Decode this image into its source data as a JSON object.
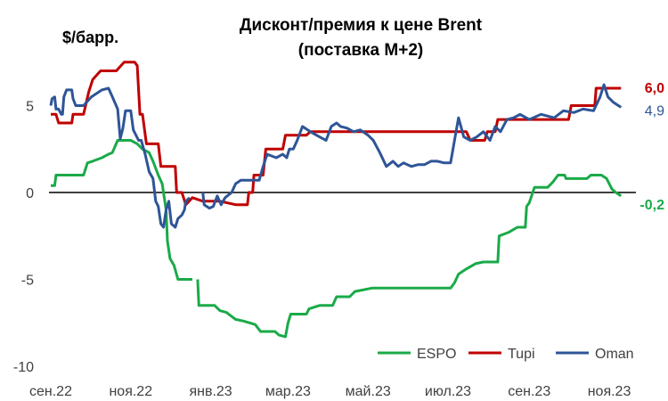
{
  "chart_data": {
    "type": "line",
    "title_line1": "Дисконт/премия к цене Brent",
    "title_line2": "(поставка М+2)",
    "ylabel": "$/барр.",
    "ylim": [
      -10,
      7.5
    ],
    "y_ticks": [
      "5",
      "0",
      "-5",
      "-10"
    ],
    "y_tick_values": [
      5,
      0,
      -5,
      -10
    ],
    "x_ticks": [
      "сен.22",
      "ноя.22",
      "янв.23",
      "мар.23",
      "май.23",
      "июл.23",
      "сен.23",
      "ноя.23"
    ],
    "x_tick_dates": [
      "2022-09-01",
      "2022-11-01",
      "2023-01-01",
      "2023-03-01",
      "2023-05-01",
      "2023-07-01",
      "2023-09-01",
      "2023-11-01"
    ],
    "xlim": [
      "2022-09-01",
      "2023-11-20"
    ],
    "legend_position": "bottom-right",
    "series": [
      {
        "name": "ESPO",
        "color": "#1aaa48",
        "end_label": "-0,2",
        "points": [
          [
            "2022-09-01",
            0.4
          ],
          [
            "2022-09-04",
            0.4
          ],
          [
            "2022-09-05",
            1.0
          ],
          [
            "2022-09-15",
            1.0
          ],
          [
            "2022-09-26",
            1.0
          ],
          [
            "2022-09-29",
            1.7
          ],
          [
            "2022-10-03",
            1.8
          ],
          [
            "2022-10-10",
            2.0
          ],
          [
            "2022-10-15",
            2.2
          ],
          [
            "2022-10-18",
            2.3
          ],
          [
            "2022-10-22",
            3.0
          ],
          [
            "2022-11-01",
            3.0
          ],
          [
            "2022-11-06",
            2.8
          ],
          [
            "2022-11-10",
            2.5
          ],
          [
            "2022-11-15",
            2.3
          ],
          [
            "2022-11-18",
            1.8
          ],
          [
            "2022-11-22",
            1.0
          ],
          [
            "2022-11-25",
            0.5
          ],
          [
            "2022-11-28",
            -1.0
          ],
          [
            "2022-11-29",
            -2.8
          ],
          [
            "2022-12-01",
            -3.8
          ],
          [
            "2022-12-04",
            -4.2
          ],
          [
            "2022-12-07",
            -5.0
          ],
          [
            "2022-12-18",
            -5.0
          ],
          [
            "2022-12-18",
            null
          ],
          [
            "2022-12-22",
            -5.0
          ],
          [
            "2022-12-23",
            -6.5
          ],
          [
            "2023-01-04",
            -6.5
          ],
          [
            "2023-01-08",
            -6.8
          ],
          [
            "2023-01-13",
            -6.9
          ],
          [
            "2023-01-20",
            -7.3
          ],
          [
            "2023-01-26",
            -7.4
          ],
          [
            "2023-02-04",
            -7.6
          ],
          [
            "2023-02-08",
            -8.0
          ],
          [
            "2023-02-19",
            -8.0
          ],
          [
            "2023-02-22",
            -8.2
          ],
          [
            "2023-02-27",
            -8.3
          ],
          [
            "2023-03-01",
            -7.5
          ],
          [
            "2023-03-03",
            -7.0
          ],
          [
            "2023-03-15",
            -7.0
          ],
          [
            "2023-03-17",
            -6.7
          ],
          [
            "2023-03-25",
            -6.5
          ],
          [
            "2023-04-04",
            -6.5
          ],
          [
            "2023-04-07",
            -6.0
          ],
          [
            "2023-04-17",
            -6.0
          ],
          [
            "2023-04-21",
            -5.7
          ],
          [
            "2023-05-04",
            -5.5
          ],
          [
            "2023-05-18",
            -5.5
          ],
          [
            "2023-06-15",
            -5.5
          ],
          [
            "2023-07-03",
            -5.5
          ],
          [
            "2023-07-06",
            -5.2
          ],
          [
            "2023-07-09",
            -4.7
          ],
          [
            "2023-07-15",
            -4.4
          ],
          [
            "2023-07-22",
            -4.1
          ],
          [
            "2023-07-28",
            -4.0
          ],
          [
            "2023-08-08",
            -4.0
          ],
          [
            "2023-08-09",
            -2.5
          ],
          [
            "2023-08-16",
            -2.3
          ],
          [
            "2023-08-23",
            -2.0
          ],
          [
            "2023-08-29",
            -2.0
          ],
          [
            "2023-08-30",
            -0.8
          ],
          [
            "2023-09-01",
            -0.6
          ],
          [
            "2023-09-05",
            0.3
          ],
          [
            "2023-09-15",
            0.3
          ],
          [
            "2023-09-19",
            0.6
          ],
          [
            "2023-09-23",
            1.0
          ],
          [
            "2023-09-28",
            1.0
          ],
          [
            "2023-09-29",
            0.8
          ],
          [
            "2023-10-15",
            0.8
          ],
          [
            "2023-10-18",
            1.0
          ],
          [
            "2023-10-26",
            1.0
          ],
          [
            "2023-10-30",
            0.8
          ],
          [
            "2023-11-03",
            0.2
          ],
          [
            "2023-11-06",
            0.0
          ],
          [
            "2023-11-10",
            -0.2
          ]
        ]
      },
      {
        "name": "Tupi",
        "color": "#c00000",
        "end_label": "6,0",
        "points": [
          [
            "2022-09-01",
            4.5
          ],
          [
            "2022-09-05",
            4.5
          ],
          [
            "2022-09-07",
            4.0
          ],
          [
            "2022-09-17",
            4.0
          ],
          [
            "2022-09-18",
            4.5
          ],
          [
            "2022-09-26",
            4.5
          ],
          [
            "2022-09-30",
            5.8
          ],
          [
            "2022-10-03",
            6.5
          ],
          [
            "2022-10-09",
            7.0
          ],
          [
            "2022-10-21",
            7.0
          ],
          [
            "2022-10-27",
            7.5
          ],
          [
            "2022-11-04",
            7.5
          ],
          [
            "2022-11-06",
            7.3
          ],
          [
            "2022-11-08",
            4.5
          ],
          [
            "2022-11-10",
            4.5
          ],
          [
            "2022-11-13",
            2.8
          ],
          [
            "2022-11-22",
            2.8
          ],
          [
            "2022-11-24",
            1.5
          ],
          [
            "2022-12-05",
            1.5
          ],
          [
            "2022-12-06",
            0.0
          ],
          [
            "2022-12-10",
            0.0
          ],
          [
            "2022-12-13",
            -0.7
          ],
          [
            "2022-12-18",
            -0.3
          ],
          [
            "2022-12-26",
            -0.5
          ],
          [
            "2023-01-08",
            -0.5
          ],
          [
            "2023-01-20",
            -0.7
          ],
          [
            "2023-01-29",
            -0.7
          ],
          [
            "2023-01-30",
            0.0
          ],
          [
            "2023-02-02",
            0.0
          ],
          [
            "2023-02-03",
            1.0
          ],
          [
            "2023-02-10",
            1.0
          ],
          [
            "2023-02-12",
            2.5
          ],
          [
            "2023-02-25",
            2.5
          ],
          [
            "2023-02-27",
            3.3
          ],
          [
            "2023-03-15",
            3.3
          ],
          [
            "2023-03-18",
            3.5
          ],
          [
            "2023-07-15",
            3.5
          ],
          [
            "2023-07-18",
            3.0
          ],
          [
            "2023-07-29",
            3.0
          ],
          [
            "2023-07-31",
            3.5
          ],
          [
            "2023-08-06",
            3.5
          ],
          [
            "2023-08-08",
            4.2
          ],
          [
            "2023-10-01",
            4.2
          ],
          [
            "2023-10-03",
            5.0
          ],
          [
            "2023-10-21",
            5.0
          ],
          [
            "2023-10-22",
            6.0
          ],
          [
            "2023-11-10",
            6.0
          ]
        ]
      },
      {
        "name": "Oman",
        "color": "#2e5597",
        "end_label": "4,9",
        "points": [
          [
            "2022-09-01",
            5.0
          ],
          [
            "2022-09-02",
            5.4
          ],
          [
            "2022-09-04",
            5.5
          ],
          [
            "2022-09-05",
            4.8
          ],
          [
            "2022-09-07",
            4.8
          ],
          [
            "2022-09-09",
            4.5
          ],
          [
            "2022-09-10",
            4.5
          ],
          [
            "2022-09-11",
            5.5
          ],
          [
            "2022-09-13",
            5.9
          ],
          [
            "2022-09-17",
            5.9
          ],
          [
            "2022-09-18",
            5.4
          ],
          [
            "2022-09-20",
            5.0
          ],
          [
            "2022-09-26",
            5.0
          ],
          [
            "2022-10-02",
            5.5
          ],
          [
            "2022-10-10",
            5.9
          ],
          [
            "2022-10-15",
            6.0
          ],
          [
            "2022-10-18",
            5.5
          ],
          [
            "2022-10-22",
            4.8
          ],
          [
            "2022-10-24",
            3.1
          ],
          [
            "2022-10-26",
            3.7
          ],
          [
            "2022-10-28",
            4.7
          ],
          [
            "2022-11-01",
            4.7
          ],
          [
            "2022-11-03",
            3.6
          ],
          [
            "2022-11-07",
            3.0
          ],
          [
            "2022-11-09",
            3.0
          ],
          [
            "2022-11-12",
            2.2
          ],
          [
            "2022-11-15",
            1.2
          ],
          [
            "2022-11-18",
            0.8
          ],
          [
            "2022-11-20",
            -0.5
          ],
          [
            "2022-11-22",
            -0.8
          ],
          [
            "2022-11-24",
            -1.8
          ],
          [
            "2022-11-26",
            -2.0
          ],
          [
            "2022-11-28",
            -1.0
          ],
          [
            "2022-11-30",
            -0.5
          ],
          [
            "2022-12-02",
            -1.8
          ],
          [
            "2022-12-05",
            -2.0
          ],
          [
            "2022-12-07",
            -1.5
          ],
          [
            "2022-12-10",
            -1.3
          ],
          [
            "2022-12-12",
            -1.0
          ],
          [
            "2022-12-13",
            -0.5
          ],
          [
            "2022-12-16",
            -0.3
          ],
          [
            "2022-12-18",
            null
          ],
          [
            "2022-12-26",
            0.0
          ],
          [
            "2022-12-27",
            -0.7
          ],
          [
            "2022-12-31",
            -0.9
          ],
          [
            "2023-01-03",
            -0.8
          ],
          [
            "2023-01-06",
            -0.2
          ],
          [
            "2023-01-09",
            -0.7
          ],
          [
            "2023-01-12",
            -0.3
          ],
          [
            "2023-01-17",
            0.0
          ],
          [
            "2023-01-20",
            0.5
          ],
          [
            "2023-01-24",
            0.7
          ],
          [
            "2023-02-07",
            0.7
          ],
          [
            "2023-02-10",
            1.5
          ],
          [
            "2023-02-13",
            2.2
          ],
          [
            "2023-02-20",
            2.0
          ],
          [
            "2023-02-25",
            2.2
          ],
          [
            "2023-02-28",
            2.0
          ],
          [
            "2023-03-02",
            2.5
          ],
          [
            "2023-03-05",
            2.5
          ],
          [
            "2023-03-08",
            3.0
          ],
          [
            "2023-03-12",
            3.8
          ],
          [
            "2023-03-18",
            3.5
          ],
          [
            "2023-03-25",
            3.2
          ],
          [
            "2023-03-30",
            3.0
          ],
          [
            "2023-04-03",
            3.8
          ],
          [
            "2023-04-07",
            4.0
          ],
          [
            "2023-04-10",
            3.8
          ],
          [
            "2023-04-15",
            3.7
          ],
          [
            "2023-04-20",
            3.5
          ],
          [
            "2023-04-25",
            3.6
          ],
          [
            "2023-05-01",
            3.3
          ],
          [
            "2023-05-05",
            3.0
          ],
          [
            "2023-05-10",
            2.3
          ],
          [
            "2023-05-15",
            1.5
          ],
          [
            "2023-05-20",
            1.8
          ],
          [
            "2023-05-24",
            1.5
          ],
          [
            "2023-05-28",
            1.7
          ],
          [
            "2023-06-03",
            1.5
          ],
          [
            "2023-06-08",
            1.6
          ],
          [
            "2023-06-13",
            1.6
          ],
          [
            "2023-06-18",
            1.8
          ],
          [
            "2023-06-23",
            1.8
          ],
          [
            "2023-06-28",
            1.7
          ],
          [
            "2023-07-03",
            1.7
          ],
          [
            "2023-07-06",
            3.0
          ],
          [
            "2023-07-09",
            4.3
          ],
          [
            "2023-07-13",
            3.2
          ],
          [
            "2023-07-18",
            3.0
          ],
          [
            "2023-07-23",
            3.2
          ],
          [
            "2023-07-28",
            3.5
          ],
          [
            "2023-08-02",
            3.0
          ],
          [
            "2023-08-06",
            3.8
          ],
          [
            "2023-08-10",
            3.5
          ],
          [
            "2023-08-15",
            4.2
          ],
          [
            "2023-08-20",
            4.3
          ],
          [
            "2023-08-25",
            4.5
          ],
          [
            "2023-09-01",
            4.2
          ],
          [
            "2023-09-10",
            4.5
          ],
          [
            "2023-09-20",
            4.3
          ],
          [
            "2023-09-27",
            4.7
          ],
          [
            "2023-10-05",
            4.6
          ],
          [
            "2023-10-12",
            4.8
          ],
          [
            "2023-10-20",
            4.7
          ],
          [
            "2023-10-25",
            5.5
          ],
          [
            "2023-10-28",
            6.2
          ],
          [
            "2023-10-31",
            5.5
          ],
          [
            "2023-11-04",
            5.2
          ],
          [
            "2023-11-08",
            5.0
          ],
          [
            "2023-11-10",
            4.9
          ]
        ]
      }
    ]
  }
}
